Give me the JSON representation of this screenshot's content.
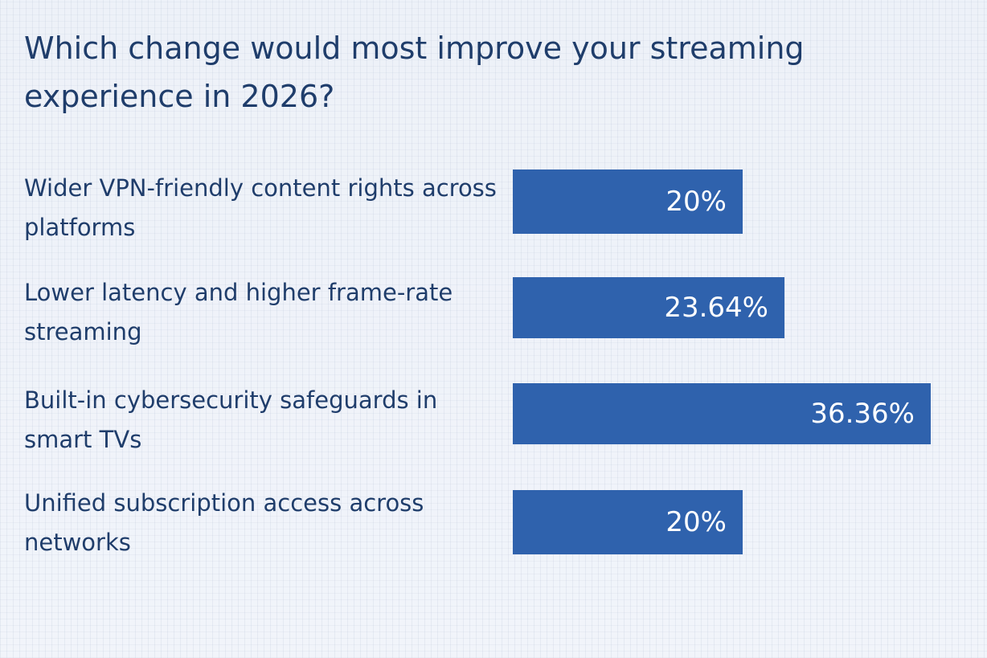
{
  "chart_data": {
    "type": "bar",
    "orientation": "horizontal",
    "title": "Which change would most improve your streaming experience in 2026?",
    "categories": [
      "Wider VPN-friendly content rights across platforms",
      "Lower latency and higher frame-rate streaming",
      "Built-in cybersecurity safeguards in smart TVs",
      "Unified subscription access across networks"
    ],
    "values": [
      20,
      23.64,
      36.36,
      20
    ],
    "value_labels": [
      "20%",
      "23.64%",
      "36.36%",
      "20%"
    ],
    "unit": "%",
    "bar_color": "#2f62ad",
    "label_color": "#1f3d6b",
    "value_text_color": "#ffffff",
    "grid": false,
    "legend": false
  }
}
